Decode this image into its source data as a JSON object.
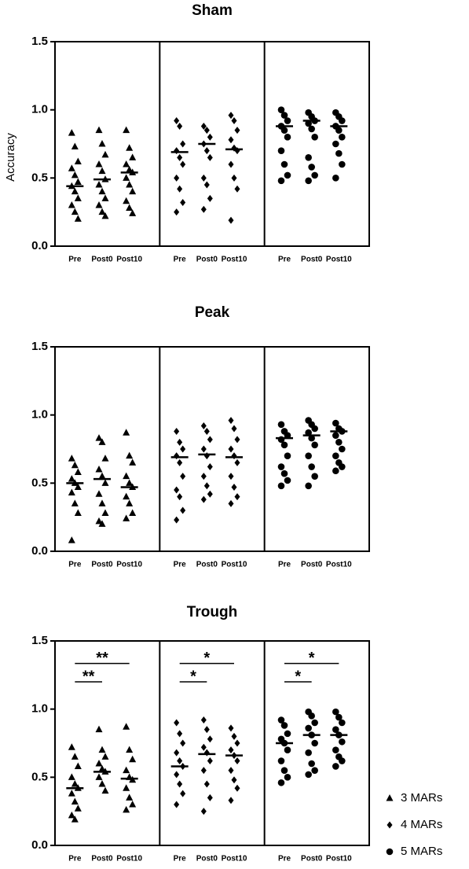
{
  "chart_data": [
    {
      "type": "scatter",
      "title": "Sham",
      "ylabel": "Accuracy",
      "ylim": [
        0,
        1.5
      ],
      "yticks": [
        {
          "value": 0,
          "label": "0.0"
        },
        0.5,
        {
          "value": 1,
          "label": "1.0"
        },
        1.5
      ],
      "series": [
        {
          "marker": "triangle",
          "categories": [
            "Pre",
            "Post0",
            "Post10"
          ],
          "values": [
            [
              0.83,
              0.73,
              0.62,
              0.57,
              0.52,
              0.47,
              0.44,
              0.4,
              0.35,
              0.3,
              0.25,
              0.2
            ],
            [
              0.85,
              0.75,
              0.67,
              0.6,
              0.55,
              0.49,
              0.45,
              0.4,
              0.35,
              0.3,
              0.25,
              0.22
            ],
            [
              0.85,
              0.72,
              0.65,
              0.6,
              0.56,
              0.54,
              0.5,
              0.45,
              0.4,
              0.33,
              0.28,
              0.24
            ]
          ],
          "medians": [
            0.44,
            0.49,
            0.54
          ]
        },
        {
          "marker": "diamond",
          "categories": [
            "Pre",
            "Post0",
            "Post10"
          ],
          "values": [
            [
              0.92,
              0.88,
              0.75,
              0.7,
              0.65,
              0.6,
              0.5,
              0.42,
              0.32,
              0.25
            ],
            [
              0.88,
              0.85,
              0.8,
              0.75,
              0.7,
              0.65,
              0.5,
              0.45,
              0.35,
              0.27
            ],
            [
              0.96,
              0.92,
              0.85,
              0.78,
              0.72,
              0.7,
              0.6,
              0.5,
              0.42,
              0.19
            ]
          ],
          "medians": [
            0.69,
            0.75,
            0.71
          ]
        },
        {
          "marker": "circle",
          "categories": [
            "Pre",
            "Post0",
            "Post10"
          ],
          "values": [
            [
              1.0,
              0.96,
              0.92,
              0.88,
              0.85,
              0.8,
              0.7,
              0.6,
              0.52,
              0.48
            ],
            [
              0.98,
              0.95,
              0.92,
              0.9,
              0.86,
              0.8,
              0.65,
              0.58,
              0.52,
              0.48
            ],
            [
              0.98,
              0.95,
              0.92,
              0.88,
              0.85,
              0.8,
              0.75,
              0.68,
              0.6,
              0.5
            ]
          ],
          "medians": [
            0.88,
            0.92,
            0.88
          ]
        }
      ]
    },
    {
      "type": "scatter",
      "title": "Peak",
      "ylim": [
        0,
        1.5
      ],
      "yticks": [
        {
          "value": 0,
          "label": "0.0"
        },
        0.5,
        {
          "value": 1,
          "label": "1.0"
        },
        1.5
      ],
      "series": [
        {
          "marker": "triangle",
          "categories": [
            "Pre",
            "Post0",
            "Post10"
          ],
          "values": [
            [
              0.68,
              0.63,
              0.58,
              0.53,
              0.5,
              0.47,
              0.43,
              0.35,
              0.28,
              0.08
            ],
            [
              0.83,
              0.8,
              0.68,
              0.6,
              0.55,
              0.5,
              0.42,
              0.35,
              0.28,
              0.22,
              0.2
            ],
            [
              0.87,
              0.7,
              0.65,
              0.55,
              0.5,
              0.47,
              0.4,
              0.35,
              0.28,
              0.24
            ]
          ],
          "medians": [
            0.5,
            0.53,
            0.47
          ]
        },
        {
          "marker": "diamond",
          "categories": [
            "Pre",
            "Post0",
            "Post10"
          ],
          "values": [
            [
              0.88,
              0.8,
              0.75,
              0.7,
              0.65,
              0.55,
              0.45,
              0.4,
              0.3,
              0.23
            ],
            [
              0.92,
              0.88,
              0.82,
              0.75,
              0.7,
              0.62,
              0.55,
              0.48,
              0.42,
              0.38
            ],
            [
              0.96,
              0.9,
              0.82,
              0.75,
              0.7,
              0.65,
              0.55,
              0.47,
              0.4,
              0.35
            ]
          ],
          "medians": [
            0.69,
            0.71,
            0.69
          ]
        },
        {
          "marker": "circle",
          "categories": [
            "Pre",
            "Post0",
            "Post10"
          ],
          "values": [
            [
              0.93,
              0.88,
              0.85,
              0.82,
              0.78,
              0.7,
              0.62,
              0.57,
              0.52,
              0.48
            ],
            [
              0.96,
              0.93,
              0.9,
              0.87,
              0.83,
              0.78,
              0.7,
              0.62,
              0.55,
              0.48
            ],
            [
              0.94,
              0.9,
              0.88,
              0.85,
              0.8,
              0.75,
              0.7,
              0.65,
              0.62,
              0.59
            ]
          ],
          "medians": [
            0.83,
            0.85,
            0.88
          ]
        }
      ]
    },
    {
      "type": "scatter",
      "title": "Trough",
      "ylim": [
        0,
        1.5
      ],
      "yticks": [
        {
          "value": 0,
          "label": "0.0"
        },
        0.5,
        {
          "value": 1,
          "label": "1.0"
        },
        1.5
      ],
      "series": [
        {
          "marker": "triangle",
          "categories": [
            "Pre",
            "Post0",
            "Post10"
          ],
          "values": [
            [
              0.72,
              0.65,
              0.58,
              0.5,
              0.45,
              0.42,
              0.38,
              0.32,
              0.27,
              0.22,
              0.19
            ],
            [
              0.85,
              0.7,
              0.65,
              0.6,
              0.56,
              0.54,
              0.5,
              0.45,
              0.4
            ],
            [
              0.87,
              0.7,
              0.63,
              0.55,
              0.5,
              0.48,
              0.42,
              0.35,
              0.3,
              0.26
            ]
          ],
          "medians": [
            0.42,
            0.54,
            0.49
          ],
          "brackets": [
            {
              "from": 0,
              "to": 1,
              "label": "**"
            },
            {
              "from": 0,
              "to": 2,
              "label": "**"
            }
          ]
        },
        {
          "marker": "diamond",
          "categories": [
            "Pre",
            "Post0",
            "Post10"
          ],
          "values": [
            [
              0.9,
              0.82,
              0.75,
              0.68,
              0.62,
              0.58,
              0.52,
              0.45,
              0.38,
              0.3
            ],
            [
              0.92,
              0.85,
              0.78,
              0.72,
              0.68,
              0.62,
              0.55,
              0.45,
              0.35,
              0.25
            ],
            [
              0.86,
              0.8,
              0.75,
              0.7,
              0.66,
              0.62,
              0.55,
              0.48,
              0.42,
              0.33
            ]
          ],
          "medians": [
            0.58,
            0.67,
            0.66
          ],
          "brackets": [
            {
              "from": 0,
              "to": 1,
              "label": "*"
            },
            {
              "from": 0,
              "to": 2,
              "label": "*"
            }
          ]
        },
        {
          "marker": "circle",
          "categories": [
            "Pre",
            "Post0",
            "Post10"
          ],
          "values": [
            [
              0.92,
              0.88,
              0.82,
              0.78,
              0.75,
              0.7,
              0.62,
              0.55,
              0.5,
              0.46
            ],
            [
              0.98,
              0.95,
              0.9,
              0.86,
              0.81,
              0.75,
              0.68,
              0.6,
              0.55,
              0.52
            ],
            [
              0.98,
              0.94,
              0.9,
              0.85,
              0.81,
              0.76,
              0.7,
              0.65,
              0.62,
              0.58
            ]
          ],
          "medians": [
            0.75,
            0.81,
            0.81
          ],
          "brackets": [
            {
              "from": 0,
              "to": 1,
              "label": "*"
            },
            {
              "from": 0,
              "to": 2,
              "label": "*"
            }
          ]
        }
      ],
      "legend": [
        {
          "name": "3 MARs",
          "marker": "triangle"
        },
        {
          "name": "4 MARs",
          "marker": "diamond"
        },
        {
          "name": "5 MARs",
          "marker": "circle"
        }
      ]
    }
  ]
}
